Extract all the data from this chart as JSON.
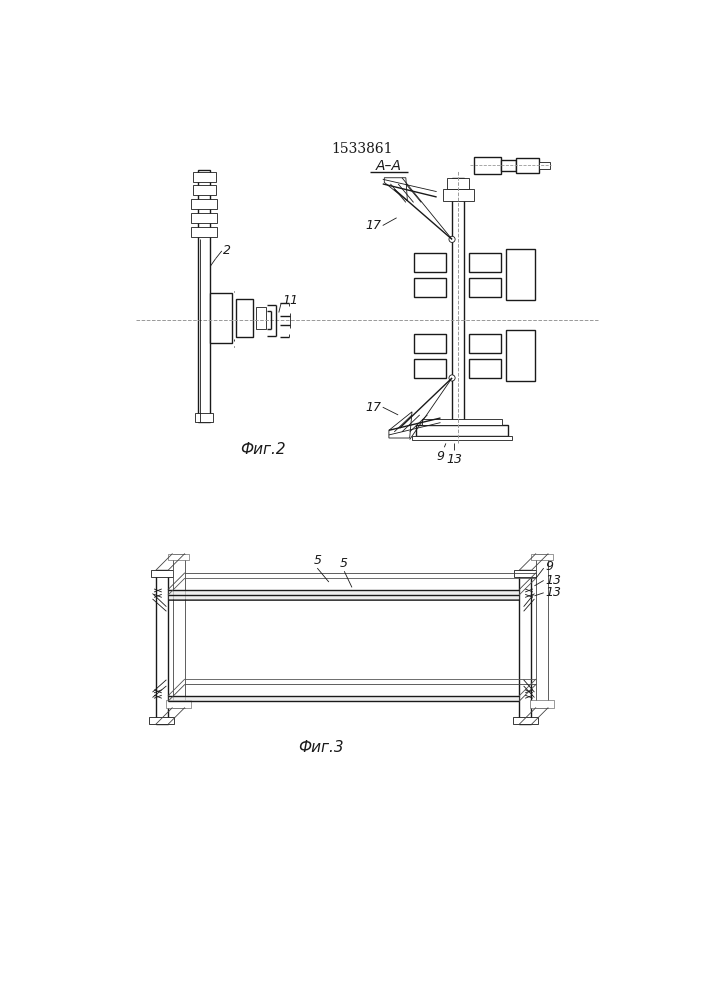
{
  "title": "1533861",
  "fig2_label": "Фиг.2",
  "fig3_label": "Фиг.3",
  "aa_label": "A–A",
  "line_color": "#1a1a1a",
  "label_2": "2",
  "label_11": "11",
  "label_17a": "17",
  "label_17b": "17",
  "label_9": "9",
  "label_13": "13",
  "label_5a": "5",
  "label_5b": "5",
  "label_9b": "9",
  "label_13a": "13",
  "label_13b": "13"
}
